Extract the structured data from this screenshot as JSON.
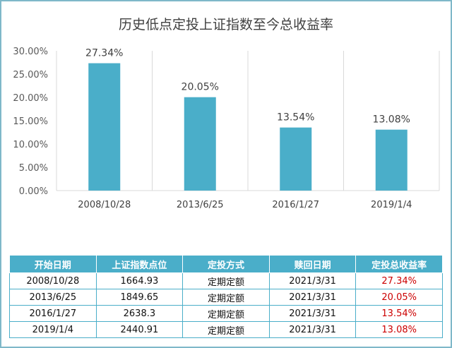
{
  "chart_data": {
    "type": "bar",
    "title": "历史低点定投上证指数至今总收益率",
    "categories": [
      "2008/10/28",
      "2013/6/25",
      "2016/1/27",
      "2019/1/4"
    ],
    "values": [
      27.34,
      20.05,
      13.54,
      13.08
    ],
    "data_labels": [
      "27.34%",
      "20.05%",
      "13.54%",
      "13.08%"
    ],
    "y_ticks": [
      "0.00%",
      "5.00%",
      "10.00%",
      "15.00%",
      "20.00%",
      "25.00%",
      "30.00%"
    ],
    "ylim": [
      0,
      30
    ],
    "grid": "vertical",
    "bar_color": "#4aaec9"
  },
  "table": {
    "headers": [
      "开始日期",
      "上证指数点位",
      "定投方式",
      "赎回日期",
      "定投总收益率"
    ],
    "rows": [
      [
        "2008/10/28",
        "1664.93",
        "定期定额",
        "2021/3/31",
        "27.34%"
      ],
      [
        "2013/6/25",
        "1849.65",
        "定期定额",
        "2021/3/31",
        "20.05%"
      ],
      [
        "2016/1/27",
        "2638.3",
        "定期定额",
        "2021/3/31",
        "13.54%"
      ],
      [
        "2019/1/4",
        "2440.91",
        "定期定额",
        "2021/3/31",
        "13.08%"
      ]
    ],
    "header_bg": "#4aaec9",
    "return_color": "#cc0000"
  }
}
